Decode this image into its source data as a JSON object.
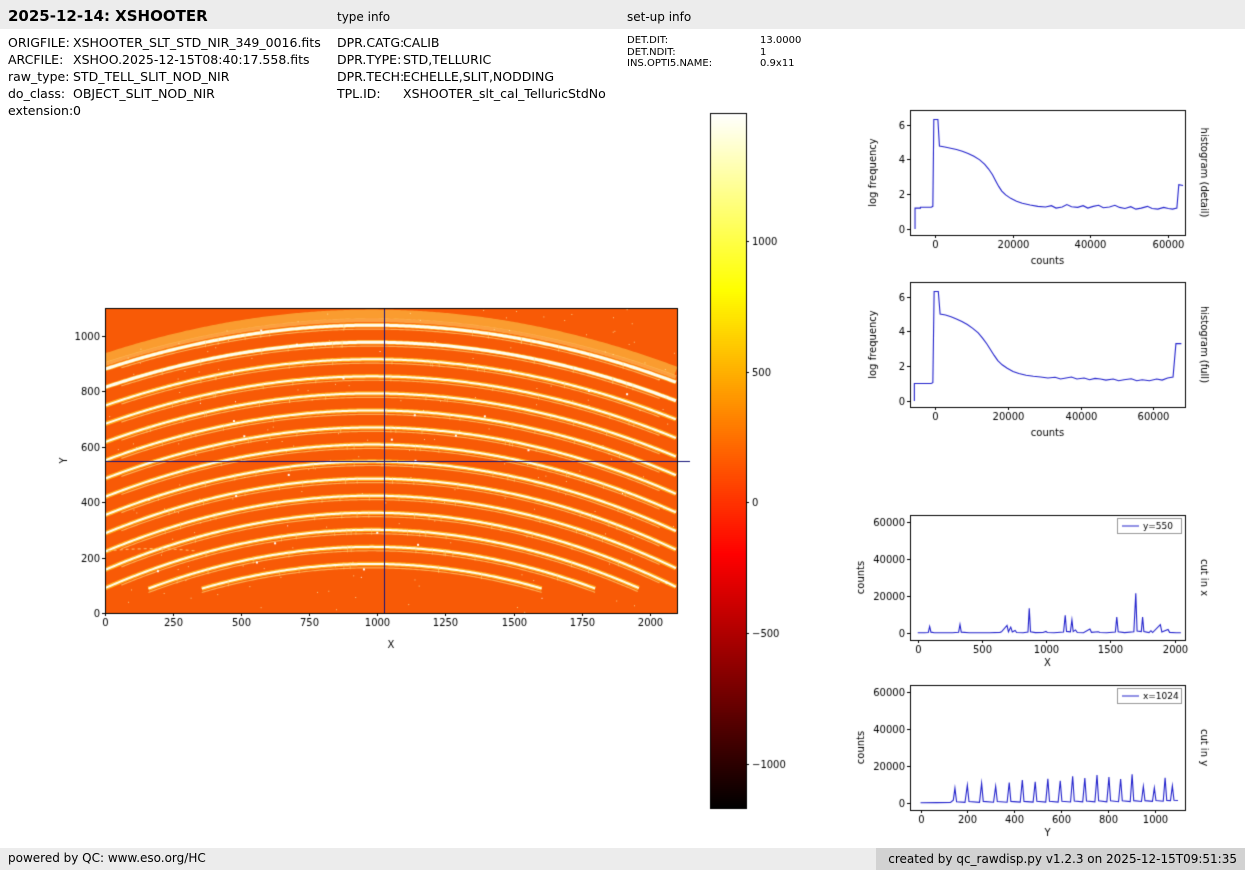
{
  "header": {
    "title": "2025-12-14: XSHOOTER",
    "file_info": [
      {
        "label": "ORIGFILE:",
        "value": "XSHOOTER_SLT_STD_NIR_349_0016.fits"
      },
      {
        "label": "ARCFILE:",
        "value": "XSHOO.2025-12-15T08:40:17.558.fits"
      },
      {
        "label": "raw_type:",
        "value": "STD_TELL_SLIT_NOD_NIR"
      },
      {
        "label": "do_class:",
        "value": "OBJECT_SLIT_NOD_NIR"
      },
      {
        "label": "extension:",
        "value": "0"
      }
    ],
    "type_info": {
      "title": "type info",
      "rows": [
        {
          "label": "DPR.CATG:",
          "value": "CALIB"
        },
        {
          "label": "DPR.TYPE:",
          "value": "STD,TELLURIC"
        },
        {
          "label": "DPR.TECH:",
          "value": "ECHELLE,SLIT,NODDING"
        },
        {
          "label": "TPL.ID:",
          "value": "XSHOOTER_slt_cal_TelluricStdNo"
        }
      ]
    },
    "setup_info": {
      "title": "set-up info",
      "rows": [
        {
          "label": "DET.DIT:",
          "value": "13.0000"
        },
        {
          "label": "DET.NDIT:",
          "value": "1"
        },
        {
          "label": "INS.OPTI5.NAME:",
          "value": "0.9x11"
        }
      ]
    }
  },
  "footer": {
    "left": "powered by QC: www.eso.org/HC",
    "right": "created by qc_rawdisp.py v1.2.3 on 2025-12-15T09:51:35"
  },
  "chart_data": [
    {
      "id": "detector_image",
      "type": "heatmap",
      "xlabel": "X",
      "ylabel": "Y",
      "xlim": [
        0,
        2100
      ],
      "ylim": [
        0,
        1100
      ],
      "xticks": [
        0,
        250,
        500,
        750,
        1000,
        1250,
        1500,
        1750,
        2000
      ],
      "yticks": [
        0,
        200,
        400,
        600,
        800,
        1000
      ],
      "crosshair": {
        "x": 1024,
        "y": 550,
        "color": "#14147a"
      },
      "colormap": "hot",
      "colors": {
        "background": "#f85a06",
        "order_glow": "rgba(255,180,30,0.9)",
        "order_core": "#fffdf0"
      },
      "orders": {
        "count": 15,
        "apex_y_start": 1038,
        "apex_y_step": 61.5,
        "center_x": 980,
        "curvature_base": 0.000165,
        "curvature_step": 4.5e-06,
        "y_cutoff": 88
      }
    },
    {
      "id": "colorbar",
      "type": "colorbar",
      "colormap": "hot",
      "ticks": [
        1000,
        500,
        0,
        -500,
        -1000
      ],
      "vmin": -1170,
      "vmax": 1490
    },
    {
      "id": "histogram_detail",
      "type": "line",
      "right_label": "histogram (detail)",
      "xlabel": "counts",
      "ylabel": "log frequency",
      "xlim": [
        -6500,
        64500
      ],
      "ylim": [
        -0.35,
        6.85
      ],
      "xticks": [
        0,
        20000,
        40000,
        60000
      ],
      "yticks": [
        0,
        2,
        4,
        6
      ],
      "line_color": "#2222cc",
      "points": [
        [
          -5200,
          0
        ],
        [
          -5200,
          1.2
        ],
        [
          -3800,
          1.2
        ],
        [
          -3800,
          1.25
        ],
        [
          -1000,
          1.25
        ],
        [
          -600,
          1.3
        ],
        [
          -350,
          6.3
        ],
        [
          700,
          6.3
        ],
        [
          1100,
          4.78
        ],
        [
          2500,
          4.72
        ],
        [
          4000,
          4.65
        ],
        [
          5500,
          4.57
        ],
        [
          7000,
          4.47
        ],
        [
          8500,
          4.34
        ],
        [
          10000,
          4.18
        ],
        [
          11500,
          3.98
        ],
        [
          12800,
          3.72
        ],
        [
          13800,
          3.45
        ],
        [
          14800,
          3.12
        ],
        [
          15600,
          2.78
        ],
        [
          16400,
          2.45
        ],
        [
          17200,
          2.18
        ],
        [
          18200,
          1.96
        ],
        [
          19500,
          1.76
        ],
        [
          21000,
          1.6
        ],
        [
          22500,
          1.48
        ],
        [
          24500,
          1.38
        ],
        [
          26500,
          1.3
        ],
        [
          28500,
          1.26
        ],
        [
          30000,
          1.34
        ],
        [
          31200,
          1.2
        ],
        [
          32800,
          1.26
        ],
        [
          34000,
          1.4
        ],
        [
          35200,
          1.28
        ],
        [
          36800,
          1.24
        ],
        [
          38200,
          1.34
        ],
        [
          39400,
          1.2
        ],
        [
          40800,
          1.3
        ],
        [
          42200,
          1.36
        ],
        [
          43400,
          1.22
        ],
        [
          45000,
          1.26
        ],
        [
          46400,
          1.36
        ],
        [
          47600,
          1.24
        ],
        [
          49000,
          1.18
        ],
        [
          50500,
          1.28
        ],
        [
          51800,
          1.14
        ],
        [
          53200,
          1.2
        ],
        [
          54800,
          1.3
        ],
        [
          56000,
          1.18
        ],
        [
          57500,
          1.14
        ],
        [
          59000,
          1.24
        ],
        [
          60200,
          1.18
        ],
        [
          61300,
          1.14
        ],
        [
          62400,
          1.2
        ],
        [
          62900,
          2.55
        ],
        [
          64000,
          2.5
        ]
      ]
    },
    {
      "id": "histogram_full",
      "type": "line",
      "right_label": "histogram (full)",
      "xlabel": "counts",
      "ylabel": "log frequency",
      "xlim": [
        -7000,
        68800
      ],
      "ylim": [
        -0.35,
        6.85
      ],
      "xticks": [
        0,
        20000,
        40000,
        60000
      ],
      "yticks": [
        0,
        2,
        4,
        6
      ],
      "line_color": "#2222cc",
      "points": [
        [
          -5800,
          0
        ],
        [
          -5800,
          1.0
        ],
        [
          -1200,
          1.0
        ],
        [
          -700,
          1.05
        ],
        [
          -350,
          6.3
        ],
        [
          800,
          6.3
        ],
        [
          1300,
          5.0
        ],
        [
          2800,
          4.95
        ],
        [
          4300,
          4.85
        ],
        [
          5800,
          4.72
        ],
        [
          7300,
          4.57
        ],
        [
          8800,
          4.4
        ],
        [
          10300,
          4.18
        ],
        [
          11800,
          3.92
        ],
        [
          13000,
          3.62
        ],
        [
          14200,
          3.28
        ],
        [
          15200,
          2.95
        ],
        [
          16200,
          2.62
        ],
        [
          17200,
          2.32
        ],
        [
          18400,
          2.08
        ],
        [
          19800,
          1.88
        ],
        [
          21400,
          1.7
        ],
        [
          23000,
          1.58
        ],
        [
          25000,
          1.48
        ],
        [
          27000,
          1.42
        ],
        [
          29000,
          1.38
        ],
        [
          31000,
          1.32
        ],
        [
          33000,
          1.36
        ],
        [
          34500,
          1.26
        ],
        [
          36000,
          1.32
        ],
        [
          37500,
          1.38
        ],
        [
          39000,
          1.26
        ],
        [
          41000,
          1.32
        ],
        [
          42500,
          1.22
        ],
        [
          44000,
          1.3
        ],
        [
          45500,
          1.26
        ],
        [
          47000,
          1.2
        ],
        [
          49000,
          1.26
        ],
        [
          50500,
          1.16
        ],
        [
          52000,
          1.22
        ],
        [
          54000,
          1.28
        ],
        [
          55500,
          1.16
        ],
        [
          57000,
          1.22
        ],
        [
          59000,
          1.16
        ],
        [
          61000,
          1.26
        ],
        [
          62500,
          1.2
        ],
        [
          64000,
          1.32
        ],
        [
          65500,
          1.38
        ],
        [
          66300,
          3.3
        ],
        [
          67800,
          3.3
        ]
      ]
    },
    {
      "id": "cut_in_x",
      "type": "line",
      "right_label": "cut in x",
      "xlabel": "X",
      "ylabel": "counts",
      "legend": "y=550",
      "xlim": [
        -60,
        2080
      ],
      "ylim": [
        -3500,
        63500
      ],
      "xticks": [
        0,
        500,
        1000,
        1500,
        2000
      ],
      "yticks": [
        0,
        20000,
        40000,
        60000
      ],
      "line_color": "#2222cc",
      "points": [
        [
          0,
          350
        ],
        [
          55,
          400
        ],
        [
          82,
          500
        ],
        [
          93,
          3800
        ],
        [
          103,
          700
        ],
        [
          130,
          400
        ],
        [
          200,
          350
        ],
        [
          270,
          400
        ],
        [
          318,
          600
        ],
        [
          329,
          4800
        ],
        [
          339,
          700
        ],
        [
          400,
          400
        ],
        [
          470,
          350
        ],
        [
          560,
          400
        ],
        [
          640,
          600
        ],
        [
          652,
          900
        ],
        [
          695,
          4300
        ],
        [
          706,
          900
        ],
        [
          724,
          3400
        ],
        [
          736,
          800
        ],
        [
          758,
          1600
        ],
        [
          770,
          500
        ],
        [
          820,
          400
        ],
        [
          858,
          800
        ],
        [
          868,
          13500
        ],
        [
          878,
          900
        ],
        [
          915,
          450
        ],
        [
          975,
          500
        ],
        [
          998,
          1100
        ],
        [
          1008,
          500
        ],
        [
          1060,
          400
        ],
        [
          1135,
          800
        ],
        [
          1148,
          9800
        ],
        [
          1158,
          1100
        ],
        [
          1188,
          900
        ],
        [
          1200,
          7300
        ],
        [
          1210,
          1000
        ],
        [
          1228,
          1900
        ],
        [
          1242,
          500
        ],
        [
          1290,
          400
        ],
        [
          1340,
          2400
        ],
        [
          1352,
          600
        ],
        [
          1405,
          900
        ],
        [
          1418,
          500
        ],
        [
          1470,
          400
        ],
        [
          1538,
          800
        ],
        [
          1549,
          8800
        ],
        [
          1560,
          900
        ],
        [
          1610,
          450
        ],
        [
          1682,
          900
        ],
        [
          1697,
          21500
        ],
        [
          1707,
          1300
        ],
        [
          1740,
          1000
        ],
        [
          1750,
          8800
        ],
        [
          1760,
          1000
        ],
        [
          1800,
          500
        ],
        [
          1815,
          1500
        ],
        [
          1828,
          500
        ],
        [
          1888,
          4700
        ],
        [
          1900,
          800
        ],
        [
          1948,
          2100
        ],
        [
          1960,
          600
        ],
        [
          2010,
          400
        ],
        [
          2048,
          380
        ]
      ]
    },
    {
      "id": "cut_in_y",
      "type": "line",
      "right_label": "cut in y",
      "xlabel": "Y",
      "ylabel": "counts",
      "legend": "x=1024",
      "xlim": [
        -45,
        1130
      ],
      "ylim": [
        -3500,
        63500
      ],
      "xticks": [
        0,
        200,
        400,
        600,
        800,
        1000
      ],
      "yticks": [
        0,
        20000,
        40000,
        60000
      ],
      "line_color": "#2222cc",
      "points": [
        [
          0,
          400
        ],
        [
          70,
          450
        ],
        [
          128,
          500
        ],
        [
          140,
          1800
        ],
        [
          147,
          8200
        ],
        [
          154,
          900
        ],
        [
          190,
          600
        ],
        [
          200,
          9800
        ],
        [
          207,
          1000
        ],
        [
          252,
          600
        ],
        [
          261,
          10800
        ],
        [
          268,
          1100
        ],
        [
          312,
          650
        ],
        [
          321,
          9200
        ],
        [
          328,
          1000
        ],
        [
          370,
          650
        ],
        [
          379,
          11200
        ],
        [
          386,
          1100
        ],
        [
          426,
          700
        ],
        [
          435,
          12600
        ],
        [
          442,
          1100
        ],
        [
          481,
          700
        ],
        [
          490,
          11600
        ],
        [
          497,
          1150
        ],
        [
          535,
          750
        ],
        [
          544,
          13200
        ],
        [
          551,
          1200
        ],
        [
          588,
          750
        ],
        [
          597,
          12200
        ],
        [
          604,
          1200
        ],
        [
          641,
          800
        ],
        [
          650,
          14600
        ],
        [
          657,
          1300
        ],
        [
          693,
          850
        ],
        [
          702,
          13600
        ],
        [
          709,
          1300
        ],
        [
          745,
          850
        ],
        [
          754,
          15200
        ],
        [
          761,
          1400
        ],
        [
          796,
          900
        ],
        [
          805,
          14200
        ],
        [
          812,
          1400
        ],
        [
          846,
          950
        ],
        [
          855,
          13100
        ],
        [
          862,
          1400
        ],
        [
          896,
          1000
        ],
        [
          904,
          15600
        ],
        [
          911,
          1500
        ],
        [
          944,
          1050
        ],
        [
          952,
          9200
        ],
        [
          959,
          1500
        ],
        [
          991,
          1100
        ],
        [
          999,
          8300
        ],
        [
          1006,
          1550
        ],
        [
          1037,
          1200
        ],
        [
          1045,
          13800
        ],
        [
          1052,
          1600
        ],
        [
          1068,
          1500
        ],
        [
          1076,
          9400
        ],
        [
          1083,
          1700
        ],
        [
          1100,
          1600
        ]
      ]
    }
  ]
}
